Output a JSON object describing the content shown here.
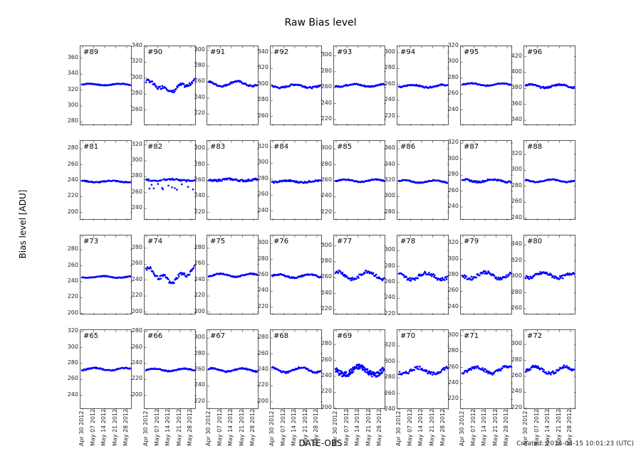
{
  "figure": {
    "title": "Raw Bias level",
    "ylabel": "Bias level [ADU]",
    "xlabel": "DATE-OBS",
    "created": "Created: 2014-04-15 10:01:23 (UTC)"
  },
  "chart_data": {
    "type": "scatter",
    "title": "Raw Bias level",
    "xlabel": "DATE-OBS",
    "ylabel": "Bias level [ADU]",
    "x_ticks": [
      "Apr 30 2012",
      "May 07 2012",
      "May 14 2012",
      "May 21 2012",
      "May 28 2012"
    ],
    "marker_color": "#0000ff",
    "grid": false,
    "panels": [
      {
        "id": "#89",
        "ylim": [
          275,
          375
        ],
        "yticks": [
          280,
          300,
          320,
          340,
          360
        ],
        "mean": 327,
        "amp": 1,
        "noise": 0.5
      },
      {
        "id": "#90",
        "ylim": [
          240,
          340
        ],
        "yticks": [
          260,
          280,
          300,
          320,
          340
        ],
        "mean": 290,
        "amp": 6,
        "noise": 2,
        "shape": "dip"
      },
      {
        "id": "#91",
        "ylim": [
          205,
          305
        ],
        "yticks": [
          220,
          240,
          260,
          280,
          300
        ],
        "mean": 258,
        "amp": 3,
        "noise": 1
      },
      {
        "id": "#92",
        "ylim": [
          248,
          348
        ],
        "yticks": [
          260,
          280,
          300,
          320,
          340
        ],
        "mean": 298,
        "amp": 2,
        "noise": 1
      },
      {
        "id": "#93",
        "ylim": [
          212,
          312
        ],
        "yticks": [
          220,
          240,
          260,
          280,
          300
        ],
        "mean": 263,
        "amp": 1.5,
        "noise": 0.8
      },
      {
        "id": "#94",
        "ylim": [
          208,
          308
        ],
        "yticks": [
          220,
          240,
          260,
          280,
          300
        ],
        "mean": 258,
        "amp": 1.5,
        "noise": 0.8
      },
      {
        "id": "#95",
        "ylim": [
          220,
          320
        ],
        "yticks": [
          240,
          260,
          280,
          300,
          320
        ],
        "mean": 272,
        "amp": 1.5,
        "noise": 0.6
      },
      {
        "id": "#96",
        "ylim": [
          333,
          433
        ],
        "yticks": [
          340,
          360,
          380,
          400,
          420
        ],
        "mean": 383,
        "amp": 2,
        "noise": 1
      },
      {
        "id": "#81",
        "ylim": [
          190,
          290
        ],
        "yticks": [
          200,
          220,
          240,
          260,
          280
        ],
        "mean": 239,
        "amp": 1,
        "noise": 0.6
      },
      {
        "id": "#82",
        "ylim": [
          225,
          325
        ],
        "yticks": [
          240,
          260,
          280,
          300,
          320
        ],
        "mean": 276,
        "amp": 1,
        "noise": 1,
        "shape": "outliers"
      },
      {
        "id": "#83",
        "ylim": [
          210,
          310
        ],
        "yticks": [
          220,
          240,
          260,
          280,
          300
        ],
        "mean": 261,
        "amp": 1,
        "noise": 1.2
      },
      {
        "id": "#84",
        "ylim": [
          228,
          328
        ],
        "yticks": [
          240,
          260,
          280,
          300,
          320
        ],
        "mean": 277,
        "amp": 1,
        "noise": 1
      },
      {
        "id": "#85",
        "ylim": [
          210,
          310
        ],
        "yticks": [
          220,
          240,
          260,
          280,
          300
        ],
        "mean": 260,
        "amp": 1.5,
        "noise": 0.6
      },
      {
        "id": "#86",
        "ylim": [
          270,
          370
        ],
        "yticks": [
          280,
          300,
          320,
          340,
          360
        ],
        "mean": 319,
        "amp": 1.5,
        "noise": 0.6
      },
      {
        "id": "#87",
        "ylim": [
          223,
          323
        ],
        "yticks": [
          240,
          260,
          280,
          300,
          320
        ],
        "mean": 273,
        "amp": 1.5,
        "noise": 1
      },
      {
        "id": "#88",
        "ylim": [
          237,
          337
        ],
        "yticks": [
          240,
          260,
          280,
          300,
          320
        ],
        "mean": 287,
        "amp": 1.5,
        "noise": 0.6
      },
      {
        "id": "#73",
        "ylim": [
          198,
          298
        ],
        "yticks": [
          200,
          220,
          240,
          260,
          280
        ],
        "mean": 246,
        "amp": 1,
        "noise": 0.5
      },
      {
        "id": "#74",
        "ylim": [
          196,
          296
        ],
        "yticks": [
          200,
          220,
          240,
          260,
          280
        ],
        "mean": 246,
        "amp": 8,
        "noise": 2,
        "shape": "dip"
      },
      {
        "id": "#75",
        "ylim": [
          196,
          296
        ],
        "yticks": [
          200,
          220,
          240,
          260,
          280
        ],
        "mean": 246,
        "amp": 2,
        "noise": 0.6
      },
      {
        "id": "#76",
        "ylim": [
          210,
          310
        ],
        "yticks": [
          220,
          240,
          260,
          280,
          300
        ],
        "mean": 259,
        "amp": 2,
        "noise": 0.8
      },
      {
        "id": "#77",
        "ylim": [
          213,
          313
        ],
        "yticks": [
          220,
          240,
          260,
          280,
          300
        ],
        "mean": 263,
        "amp": 5,
        "noise": 2
      },
      {
        "id": "#78",
        "ylim": [
          219,
          319
        ],
        "yticks": [
          220,
          240,
          260,
          280,
          300
        ],
        "mean": 268,
        "amp": 4,
        "noise": 2
      },
      {
        "id": "#79",
        "ylim": [
          230,
          330
        ],
        "yticks": [
          240,
          260,
          280,
          300,
          320
        ],
        "mean": 280,
        "amp": 4,
        "noise": 2
      },
      {
        "id": "#80",
        "ylim": [
          252,
          352
        ],
        "yticks": [
          260,
          280,
          300,
          320,
          340
        ],
        "mean": 302,
        "amp": 3,
        "noise": 2
      },
      {
        "id": "#65",
        "ylim": [
          222,
          322
        ],
        "yticks": [
          240,
          260,
          280,
          300,
          320
        ],
        "mean": 273,
        "amp": 1.5,
        "noise": 0.6
      },
      {
        "id": "#66",
        "ylim": [
          182,
          282
        ],
        "yticks": [
          200,
          220,
          240,
          260,
          280
        ],
        "mean": 232,
        "amp": 1.5,
        "noise": 0.6
      },
      {
        "id": "#67",
        "ylim": [
          210,
          310
        ],
        "yticks": [
          220,
          240,
          260,
          280,
          300
        ],
        "mean": 260,
        "amp": 2,
        "noise": 0.8
      },
      {
        "id": "#68",
        "ylim": [
          190,
          290
        ],
        "yticks": [
          200,
          220,
          240,
          260,
          280
        ],
        "mean": 240,
        "amp": 3,
        "noise": 1
      },
      {
        "id": "#69",
        "ylim": [
          198,
          298
        ],
        "yticks": [
          200,
          220,
          240,
          260,
          280
        ],
        "mean": 247,
        "amp": 5,
        "noise": 3.5,
        "shape": "dense"
      },
      {
        "id": "#70",
        "ylim": [
          240,
          340
        ],
        "yticks": [
          240,
          260,
          280,
          300,
          320
        ],
        "mean": 289,
        "amp": 4,
        "noise": 2
      },
      {
        "id": "#71",
        "ylim": [
          207,
          307
        ],
        "yticks": [
          220,
          240,
          260,
          280,
          300
        ],
        "mean": 257,
        "amp": 4,
        "noise": 2
      },
      {
        "id": "#72",
        "ylim": [
          218,
          318
        ],
        "yticks": [
          220,
          240,
          260,
          280,
          300
        ],
        "mean": 268,
        "amp": 4,
        "noise": 2
      }
    ]
  }
}
